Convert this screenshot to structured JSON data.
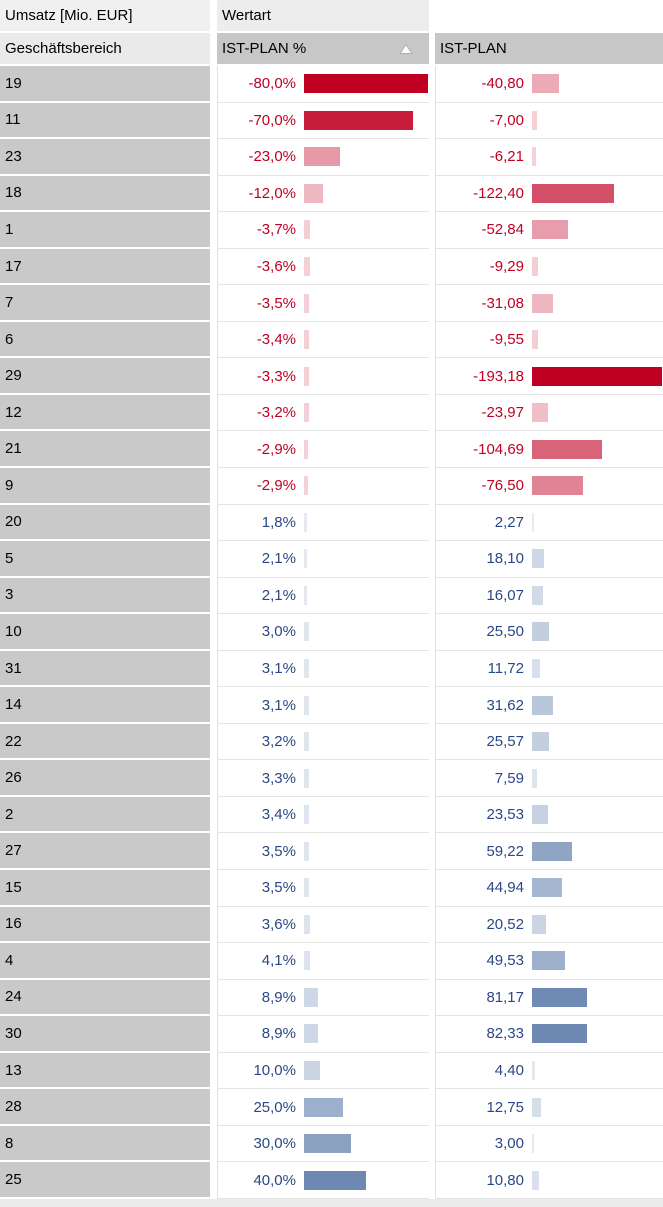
{
  "header": {
    "measure_title": "Umsatz [Mio. EUR]",
    "column_dimension": "Wertart",
    "row_dimension": "Geschäftsbereich",
    "col_pct_label": "IST-PLAN %",
    "col_abs_label": "IST-PLAN",
    "sort_icon": "sort-ascending-triangle"
  },
  "colors": {
    "negative_base": "#c00023",
    "positive_bar_base": "#6d89b2",
    "negative_text": "#c00023",
    "positive_text": "#2a4885",
    "row_header_bg": "#c9c9c9",
    "column_header_bg": "#c7c7c7",
    "corner_bg": "#f0f0f0",
    "separator": "#e4e4e4"
  },
  "chart_data": {
    "type": "table",
    "title": "Umsatz [Mio. EUR]",
    "row_dimension": "Geschäftsbereich",
    "column_dimension": "Wertart",
    "columns": [
      "IST-PLAN %",
      "IST-PLAN"
    ],
    "sorted_by": "IST-PLAN %",
    "sort_direction": "ascending",
    "bar_axis_max_pct": 80.0,
    "bar_axis_max_value": 193.18,
    "rows": [
      {
        "label": "19",
        "pct": -80.0,
        "pct_text": "-80,0%",
        "value": -40.8,
        "value_text": "-40,80"
      },
      {
        "label": "11",
        "pct": -70.0,
        "pct_text": "-70,0%",
        "value": -7.0,
        "value_text": "-7,00"
      },
      {
        "label": "23",
        "pct": -23.0,
        "pct_text": "-23,0%",
        "value": -6.21,
        "value_text": "-6,21"
      },
      {
        "label": "18",
        "pct": -12.0,
        "pct_text": "-12,0%",
        "value": -122.4,
        "value_text": "-122,40"
      },
      {
        "label": "1",
        "pct": -3.7,
        "pct_text": "-3,7%",
        "value": -52.84,
        "value_text": "-52,84"
      },
      {
        "label": "17",
        "pct": -3.6,
        "pct_text": "-3,6%",
        "value": -9.29,
        "value_text": "-9,29"
      },
      {
        "label": "7",
        "pct": -3.5,
        "pct_text": "-3,5%",
        "value": -31.08,
        "value_text": "-31,08"
      },
      {
        "label": "6",
        "pct": -3.4,
        "pct_text": "-3,4%",
        "value": -9.55,
        "value_text": "-9,55"
      },
      {
        "label": "29",
        "pct": -3.3,
        "pct_text": "-3,3%",
        "value": -193.18,
        "value_text": "-193,18"
      },
      {
        "label": "12",
        "pct": -3.2,
        "pct_text": "-3,2%",
        "value": -23.97,
        "value_text": "-23,97"
      },
      {
        "label": "21",
        "pct": -2.9,
        "pct_text": "-2,9%",
        "value": -104.69,
        "value_text": "-104,69"
      },
      {
        "label": "9",
        "pct": -2.9,
        "pct_text": "-2,9%",
        "value": -76.5,
        "value_text": "-76,50"
      },
      {
        "label": "20",
        "pct": 1.8,
        "pct_text": "1,8%",
        "value": 2.27,
        "value_text": "2,27"
      },
      {
        "label": "5",
        "pct": 2.1,
        "pct_text": "2,1%",
        "value": 18.1,
        "value_text": "18,10"
      },
      {
        "label": "3",
        "pct": 2.1,
        "pct_text": "2,1%",
        "value": 16.07,
        "value_text": "16,07"
      },
      {
        "label": "10",
        "pct": 3.0,
        "pct_text": "3,0%",
        "value": 25.5,
        "value_text": "25,50"
      },
      {
        "label": "31",
        "pct": 3.1,
        "pct_text": "3,1%",
        "value": 11.72,
        "value_text": "11,72"
      },
      {
        "label": "14",
        "pct": 3.1,
        "pct_text": "3,1%",
        "value": 31.62,
        "value_text": "31,62"
      },
      {
        "label": "22",
        "pct": 3.2,
        "pct_text": "3,2%",
        "value": 25.57,
        "value_text": "25,57"
      },
      {
        "label": "26",
        "pct": 3.3,
        "pct_text": "3,3%",
        "value": 7.59,
        "value_text": "7,59"
      },
      {
        "label": "2",
        "pct": 3.4,
        "pct_text": "3,4%",
        "value": 23.53,
        "value_text": "23,53"
      },
      {
        "label": "27",
        "pct": 3.5,
        "pct_text": "3,5%",
        "value": 59.22,
        "value_text": "59,22"
      },
      {
        "label": "15",
        "pct": 3.5,
        "pct_text": "3,5%",
        "value": 44.94,
        "value_text": "44,94"
      },
      {
        "label": "16",
        "pct": 3.6,
        "pct_text": "3,6%",
        "value": 20.52,
        "value_text": "20,52"
      },
      {
        "label": "4",
        "pct": 4.1,
        "pct_text": "4,1%",
        "value": 49.53,
        "value_text": "49,53"
      },
      {
        "label": "24",
        "pct": 8.9,
        "pct_text": "8,9%",
        "value": 81.17,
        "value_text": "81,17"
      },
      {
        "label": "30",
        "pct": 8.9,
        "pct_text": "8,9%",
        "value": 82.33,
        "value_text": "82,33"
      },
      {
        "label": "13",
        "pct": 10.0,
        "pct_text": "10,0%",
        "value": 4.4,
        "value_text": "4,40"
      },
      {
        "label": "28",
        "pct": 25.0,
        "pct_text": "25,0%",
        "value": 12.75,
        "value_text": "12,75"
      },
      {
        "label": "8",
        "pct": 30.0,
        "pct_text": "30,0%",
        "value": 3.0,
        "value_text": "3,00"
      },
      {
        "label": "25",
        "pct": 40.0,
        "pct_text": "40,0%",
        "value": 10.8,
        "value_text": "10,80"
      }
    ]
  }
}
